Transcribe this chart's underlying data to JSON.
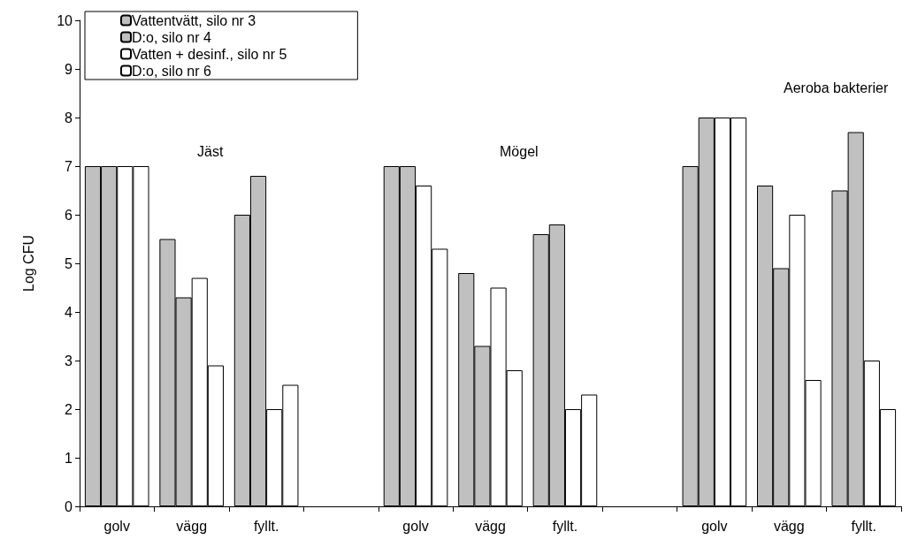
{
  "chart_data": {
    "type": "bar",
    "ylabel": "Log CFU",
    "categories": [
      "golv",
      "vägg",
      "fyllt.",
      null,
      "golv",
      "vägg",
      "fyllt.",
      null,
      "golv",
      "vägg",
      "fyllt."
    ],
    "series": [
      {
        "name": "Vattentvätt, silo nr 3",
        "color": "#c0c0c0",
        "values": [
          7,
          5.5,
          6.0,
          null,
          7,
          4.8,
          5.6,
          null,
          7,
          6.6,
          6.5
        ]
      },
      {
        "name": "D:o, silo nr 4",
        "color": "#c0c0c0",
        "values": [
          7,
          4.3,
          6.8,
          null,
          7,
          3.3,
          5.8,
          null,
          8,
          4.9,
          7.7
        ]
      },
      {
        "name": "Vatten + desinf., silo nr 5",
        "color": "#ffffff",
        "values": [
          7,
          4.7,
          2.0,
          null,
          6.6,
          4.5,
          2.0,
          null,
          8,
          6.0,
          3.0
        ]
      },
      {
        "name": "D:o, silo nr 6",
        "color": "#ffffff",
        "values": [
          7,
          2.9,
          2.5,
          null,
          5.3,
          2.8,
          2.3,
          null,
          8,
          2.6,
          2.0
        ]
      }
    ],
    "ylim": [
      0,
      10
    ],
    "yticks": [
      0,
      1,
      2,
      3,
      4,
      5,
      6,
      7,
      8,
      9,
      10
    ],
    "grid": false,
    "legend": "top left",
    "annotations": [
      "Jäst",
      "Mögel",
      "Aeroba bakterier"
    ]
  }
}
